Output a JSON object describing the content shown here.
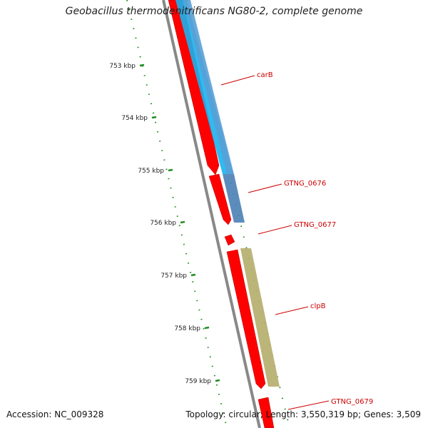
{
  "title": "Geobacillus thermodenitrificans NG80-2, complete genome",
  "footer": {
    "accession": "Accession: NC_009328",
    "summary": "Topology: circular; Length: 3,550,319 bp; Genes: 3,509"
  },
  "colors": {
    "backbone": "#888888",
    "forward_cds": "#ff0000",
    "label_line": "#cc0000",
    "tick": "#228b22",
    "blast_cyan": "#1ab2ee",
    "blast_steel": "#4a7fb5",
    "blast_olive": "#b5ad6b"
  },
  "scale_ticks": [
    "753 kbp",
    "754 kbp",
    "755 kbp",
    "756 kbp",
    "757 kbp",
    "758 kbp",
    "759 kbp"
  ],
  "genes": [
    {
      "name": "carB"
    },
    {
      "name": "GTNG_0676"
    },
    {
      "name": "GTNG_0677"
    },
    {
      "name": "clpB"
    },
    {
      "name": "GTNG_0679"
    }
  ]
}
